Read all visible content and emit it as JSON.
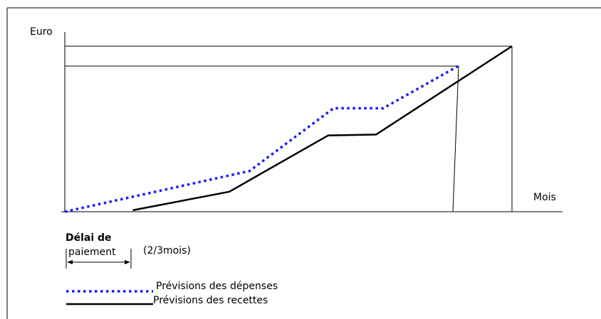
{
  "chart_data": {
    "type": "line",
    "title": "",
    "ylabel": "Euro",
    "xlabel": "Mois",
    "x_range": [
      0,
      100
    ],
    "y_range": [
      0,
      100
    ],
    "series": [
      {
        "name": "Prévisions des dépenses",
        "color": "#1a1aff",
        "style": "dotted",
        "x": [
          0,
          41.3,
          60.1,
          71.2,
          87.9
        ],
        "y": [
          0,
          24.6,
          62.5,
          62.5,
          87.9
        ]
      },
      {
        "name": "Prévisions des recettes",
        "color": "#000000",
        "style": "solid",
        "x": [
          15.2,
          36.8,
          58.9,
          69.6,
          100
        ],
        "y": [
          0.9,
          12.1,
          46.1,
          46.6,
          100
        ]
      }
    ],
    "reference_lines": {
      "top_outer": 100,
      "top_inner": 87.9
    },
    "annotation": {
      "line1": "Délai de",
      "line2": "paiement",
      "note": "(2/3mois)"
    },
    "legend": {
      "position": "bottom-left"
    }
  }
}
